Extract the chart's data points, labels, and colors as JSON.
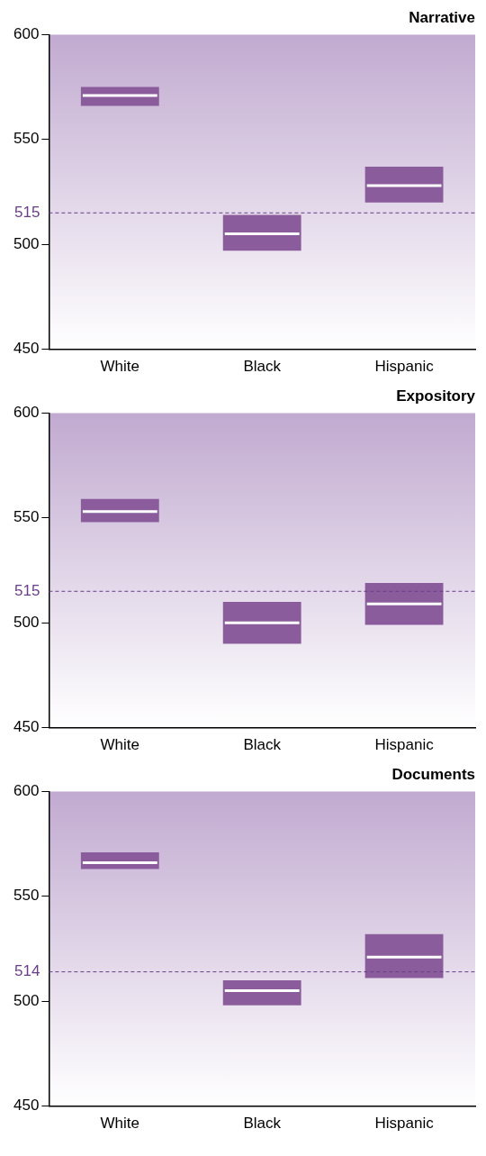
{
  "chart_data": [
    {
      "type": "box",
      "title": "Narrative",
      "categories": [
        "White",
        "Black",
        "Hispanic"
      ],
      "color": "#8a5c9c",
      "grid": false,
      "legend": false,
      "boxes": [
        {
          "low": 566,
          "q1": 566,
          "median": 571,
          "q3": 575,
          "high": 575
        },
        {
          "low": 497,
          "q1": 497,
          "median": 505,
          "q3": 514,
          "high": 514
        },
        {
          "low": 520,
          "q1": 520,
          "median": 528,
          "q3": 537,
          "high": 537
        }
      ],
      "ylim": [
        450,
        600
      ],
      "yticks": [
        450,
        500,
        550,
        600
      ],
      "ref_lines": [
        {
          "axis": "y",
          "value": 515,
          "label": "515",
          "color": "#6a3d8a",
          "line_style": "dashed"
        }
      ]
    },
    {
      "type": "box",
      "title": "Expository",
      "categories": [
        "White",
        "Black",
        "Hispanic"
      ],
      "color": "#8a5c9c",
      "grid": false,
      "legend": false,
      "boxes": [
        {
          "low": 548,
          "q1": 548,
          "median": 553,
          "q3": 559,
          "high": 559
        },
        {
          "low": 490,
          "q1": 490,
          "median": 500,
          "q3": 510,
          "high": 510
        },
        {
          "low": 499,
          "q1": 499,
          "median": 509,
          "q3": 519,
          "high": 519
        }
      ],
      "ylim": [
        450,
        600
      ],
      "yticks": [
        450,
        500,
        550,
        600
      ],
      "ref_lines": [
        {
          "axis": "y",
          "value": 515,
          "label": "515",
          "color": "#6a3d8a",
          "line_style": "dashed"
        }
      ]
    },
    {
      "type": "box",
      "title": "Documents",
      "categories": [
        "White",
        "Black",
        "Hispanic"
      ],
      "color": "#8a5c9c",
      "grid": false,
      "legend": false,
      "boxes": [
        {
          "low": 563,
          "q1": 563,
          "median": 566,
          "q3": 571,
          "high": 571
        },
        {
          "low": 498,
          "q1": 498,
          "median": 505,
          "q3": 510,
          "high": 510
        },
        {
          "low": 511,
          "q1": 511,
          "median": 521,
          "q3": 532,
          "high": 532
        }
      ],
      "ylim": [
        450,
        600
      ],
      "yticks": [
        450,
        500,
        550,
        600
      ],
      "ref_lines": [
        {
          "axis": "y",
          "value": 514,
          "label": "514",
          "color": "#6a3d8a",
          "line_style": "dashed"
        }
      ]
    }
  ]
}
